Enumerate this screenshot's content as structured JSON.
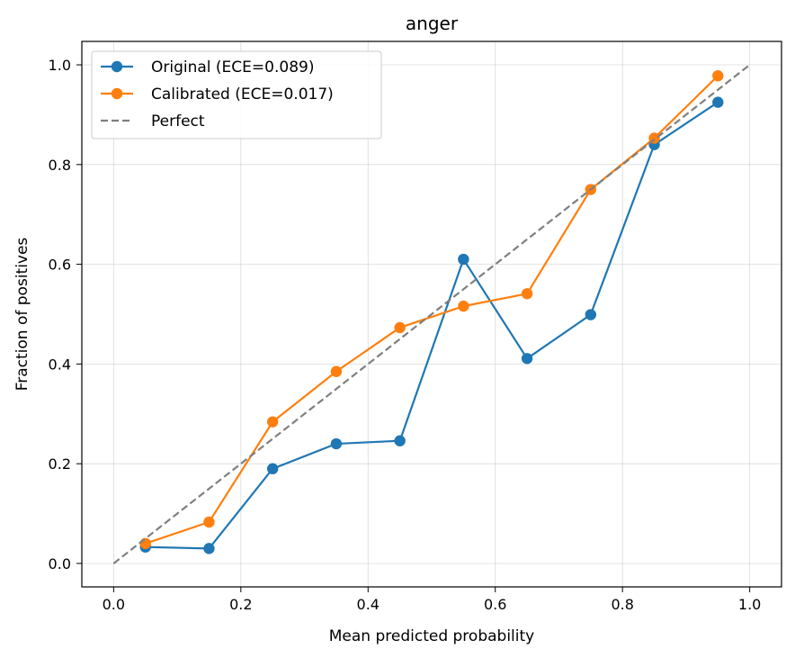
{
  "chart_data": {
    "type": "line",
    "title": "anger",
    "xlabel": "Mean predicted probability",
    "ylabel": "Fraction of positives",
    "xlim": [
      -0.05,
      1.05
    ],
    "ylim": [
      -0.047,
      1.047
    ],
    "xticks": [
      "0.0",
      "0.2",
      "0.4",
      "0.6",
      "0.8",
      "1.0"
    ],
    "yticks": [
      "0.0",
      "0.2",
      "0.4",
      "0.6",
      "0.8",
      "1.0"
    ],
    "grid": true,
    "legend_position": "top-left",
    "series": [
      {
        "name": "Original (ECE=0.089)",
        "color": "#1f77b4",
        "style": "line-marker",
        "x": [
          0.05,
          0.15,
          0.25,
          0.35,
          0.45,
          0.55,
          0.65,
          0.75,
          0.85,
          0.95
        ],
        "y": [
          0.033,
          0.03,
          0.19,
          0.24,
          0.246,
          0.61,
          0.411,
          0.499,
          0.84,
          0.925
        ]
      },
      {
        "name": "Calibrated (ECE=0.017)",
        "color": "#ff7f0e",
        "style": "line-marker",
        "x": [
          0.05,
          0.15,
          0.25,
          0.35,
          0.45,
          0.55,
          0.65,
          0.75,
          0.85,
          0.95
        ],
        "y": [
          0.04,
          0.083,
          0.284,
          0.385,
          0.473,
          0.516,
          0.541,
          0.75,
          0.853,
          0.978
        ]
      },
      {
        "name": "Perfect",
        "color": "#7f7f7f",
        "style": "dashed",
        "x": [
          0.0,
          1.0
        ],
        "y": [
          0.0,
          1.0
        ]
      }
    ]
  }
}
